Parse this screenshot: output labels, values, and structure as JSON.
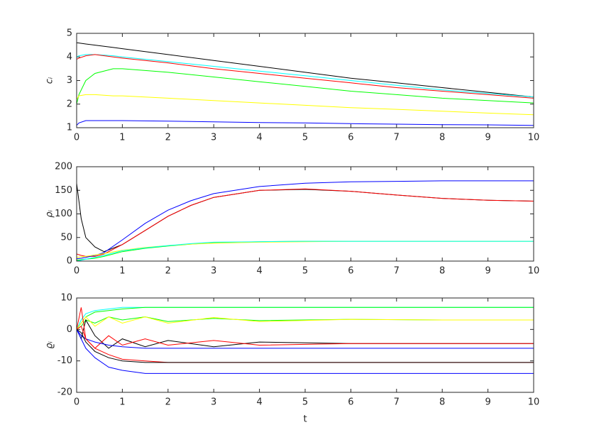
{
  "chart_data": [
    {
      "type": "line",
      "ylabel": "cᵢ",
      "x": [
        0,
        0.05,
        0.2,
        0.4,
        0.8,
        1,
        2,
        3,
        4,
        5,
        6,
        7,
        8,
        9,
        10
      ],
      "xlim": [
        0,
        10
      ],
      "xticks": [
        0,
        1,
        2,
        3,
        4,
        5,
        6,
        7,
        8,
        9,
        10
      ],
      "ylim": [
        1,
        5
      ],
      "yticks": [
        1,
        2,
        3,
        4,
        5
      ],
      "series": [
        {
          "color": "#000000",
          "values": [
            4.6,
            4.59,
            4.55,
            4.5,
            4.4,
            4.35,
            4.1,
            3.85,
            3.6,
            3.35,
            3.1,
            2.9,
            2.7,
            2.5,
            2.3
          ]
        },
        {
          "color": "#00ffff",
          "values": [
            4.0,
            4.05,
            4.1,
            4.1,
            4.05,
            4.0,
            3.8,
            3.6,
            3.4,
            3.2,
            3.0,
            2.8,
            2.6,
            2.45,
            2.3
          ]
        },
        {
          "color": "#ff0000",
          "values": [
            3.9,
            3.95,
            4.05,
            4.1,
            4.0,
            3.95,
            3.75,
            3.5,
            3.3,
            3.1,
            2.9,
            2.7,
            2.55,
            2.4,
            2.25
          ]
        },
        {
          "color": "#00ff00",
          "values": [
            2.0,
            2.4,
            3.0,
            3.3,
            3.5,
            3.5,
            3.35,
            3.15,
            2.95,
            2.75,
            2.55,
            2.4,
            2.25,
            2.15,
            2.05
          ]
        },
        {
          "color": "#ffff00",
          "values": [
            2.2,
            2.35,
            2.4,
            2.4,
            2.35,
            2.35,
            2.25,
            2.15,
            2.05,
            1.95,
            1.85,
            1.78,
            1.7,
            1.62,
            1.55
          ]
        },
        {
          "color": "#0000ff",
          "values": [
            1.1,
            1.2,
            1.3,
            1.3,
            1.3,
            1.3,
            1.28,
            1.25,
            1.22,
            1.2,
            1.17,
            1.15,
            1.13,
            1.12,
            1.1
          ]
        }
      ]
    },
    {
      "type": "line",
      "ylabel": "ρᵢ",
      "x": [
        0,
        0.1,
        0.2,
        0.4,
        0.6,
        1,
        1.5,
        2,
        2.5,
        3,
        4,
        5,
        6,
        7,
        8,
        9,
        10
      ],
      "xlim": [
        0,
        10
      ],
      "xticks": [
        0,
        1,
        2,
        3,
        4,
        5,
        6,
        7,
        8,
        9,
        10
      ],
      "ylim": [
        0,
        200
      ],
      "yticks": [
        0,
        50,
        100,
        150,
        200
      ],
      "series": [
        {
          "color": "#000000",
          "values": [
            165,
            90,
            50,
            30,
            20,
            35,
            65,
            95,
            118,
            135,
            150,
            152,
            148,
            140,
            133,
            129,
            127
          ]
        },
        {
          "color": "#ff0000",
          "values": [
            15,
            12,
            10,
            10,
            15,
            35,
            65,
            95,
            118,
            135,
            150,
            153,
            148,
            140,
            133,
            129,
            127
          ]
        },
        {
          "color": "#0000ff",
          "values": [
            5,
            6,
            8,
            12,
            18,
            45,
            80,
            108,
            128,
            143,
            158,
            165,
            168,
            169,
            170,
            170,
            170
          ]
        },
        {
          "color": "#00ff00",
          "values": [
            2,
            3,
            4,
            6,
            10,
            20,
            27,
            32,
            36,
            39,
            41,
            42,
            42,
            42,
            42,
            42,
            42
          ]
        },
        {
          "color": "#ffff00",
          "values": [
            8,
            9,
            10,
            13,
            16,
            23,
            29,
            33,
            36,
            38,
            40,
            41,
            42,
            42,
            42,
            42,
            42
          ]
        },
        {
          "color": "#00ffff",
          "values": [
            0,
            2,
            4,
            8,
            12,
            22,
            28,
            33,
            37,
            40,
            41,
            42,
            42,
            42,
            42,
            42,
            42
          ]
        }
      ]
    },
    {
      "type": "line",
      "ylabel": "ϱᵢ",
      "xlabel": "t",
      "x": [
        0,
        0.1,
        0.2,
        0.4,
        0.7,
        1,
        1.5,
        2,
        3,
        4,
        6,
        8,
        10
      ],
      "xlim": [
        0,
        10
      ],
      "xticks": [
        0,
        1,
        2,
        3,
        4,
        5,
        6,
        7,
        8,
        9,
        10
      ],
      "ylim": [
        -20,
        10
      ],
      "yticks": [
        -20,
        -10,
        0,
        10
      ],
      "series": [
        {
          "color": "#00ffff",
          "values": [
            0,
            3,
            5,
            6,
            6.5,
            7,
            7,
            7,
            7,
            7,
            7,
            7,
            7
          ]
        },
        {
          "color": "#00ff00",
          "values": [
            0,
            2,
            4,
            5.5,
            6,
            6.5,
            7,
            7,
            7,
            7,
            7,
            7,
            7
          ]
        },
        {
          "color": "#00ff00",
          "values": [
            0,
            1,
            3,
            2,
            4,
            3,
            4,
            2.5,
            3.5,
            2.8,
            3.2,
            3,
            3
          ]
        },
        {
          "color": "#ffff00",
          "values": [
            0,
            2,
            4,
            1,
            4,
            2,
            4,
            2,
            3.8,
            2.5,
            3.2,
            3,
            3
          ]
        },
        {
          "color": "#000000",
          "values": [
            0,
            -3,
            3,
            -2,
            -6,
            -3,
            -5.5,
            -3.5,
            -5.5,
            -4,
            -4.5,
            -4.5,
            -4.5
          ]
        },
        {
          "color": "#ff0000",
          "values": [
            0,
            7,
            -3,
            -6,
            -2,
            -5,
            -3,
            -5,
            -3.5,
            -5,
            -4.5,
            -4.5,
            -4.5
          ]
        },
        {
          "color": "#0000ff",
          "values": [
            0,
            -2,
            -3,
            -4,
            -5,
            -5.5,
            -6,
            -6,
            -6,
            -6,
            -6,
            -6,
            -6
          ]
        },
        {
          "color": "#ff0000",
          "values": [
            0,
            1,
            -3,
            -6,
            -8,
            -9.5,
            -10,
            -10.5,
            -10.5,
            -10.5,
            -10.5,
            -10.5,
            -10.5
          ]
        },
        {
          "color": "#000000",
          "values": [
            0,
            -1,
            -4,
            -7,
            -9,
            -10,
            -10.5,
            -10.5,
            -10.5,
            -10.5,
            -10.5,
            -10.5,
            -10.5
          ]
        },
        {
          "color": "#0000ff",
          "values": [
            0,
            -3,
            -6,
            -9,
            -12,
            -13,
            -14,
            -14,
            -14,
            -14,
            -14,
            -14,
            -14
          ]
        }
      ]
    }
  ]
}
